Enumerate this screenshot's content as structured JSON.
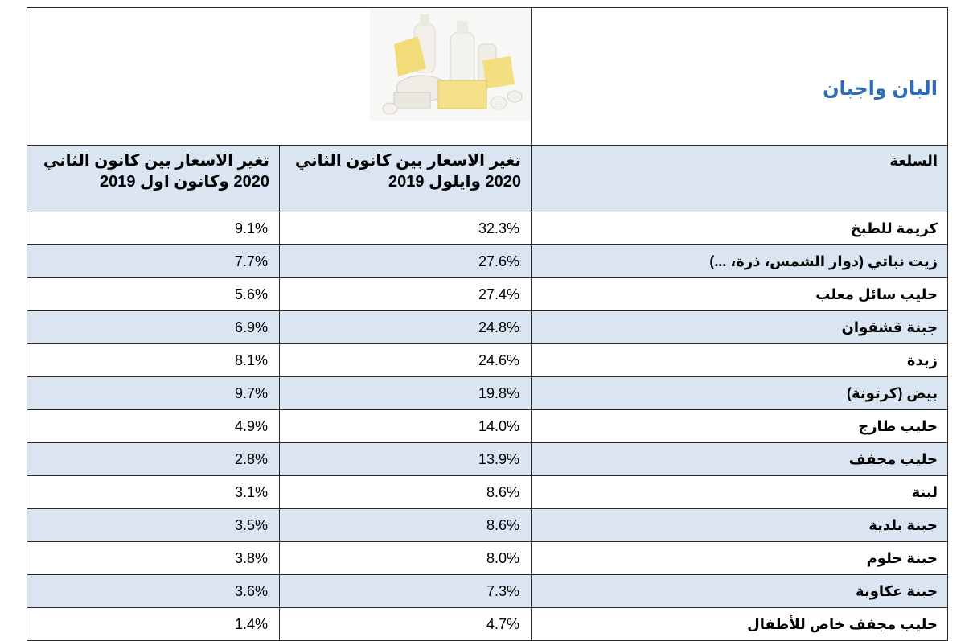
{
  "header": {
    "title": "البان واجبان"
  },
  "table": {
    "columns": [
      "السلعة",
      "تغير الاسعار بين كانون الثاني 2020 وايلول 2019",
      "تغير الاسعار بين كانون الثاني 2020 وكانون اول 2019"
    ],
    "rows": [
      [
        "كريمة للطبخ",
        "32.3%",
        "9.1%"
      ],
      [
        "زيت نباتي (دوار الشمس، ذرة، ...)",
        "27.6%",
        "7.7%"
      ],
      [
        "حليب سائل معلب",
        "27.4%",
        "5.6%"
      ],
      [
        "جبنة قشقوان",
        "24.8%",
        "6.9%"
      ],
      [
        "زبدة",
        "24.6%",
        "8.1%"
      ],
      [
        "بيض (كرتونة)",
        "19.8%",
        "9.7%"
      ],
      [
        "حليب طازج",
        "14.0%",
        "4.9%"
      ],
      [
        "حليب مجفف",
        "13.9%",
        "2.8%"
      ],
      [
        "لبنة",
        "8.6%",
        "3.1%"
      ],
      [
        "جبنة بلدية",
        "8.6%",
        "3.5%"
      ],
      [
        "جبنة حلوم",
        "8.0%",
        "3.8%"
      ],
      [
        "جبنة عكاوية",
        "7.3%",
        "3.6%"
      ],
      [
        "حليب مجفف خاص للأطفال",
        "4.7%",
        "1.4%"
      ]
    ]
  }
}
